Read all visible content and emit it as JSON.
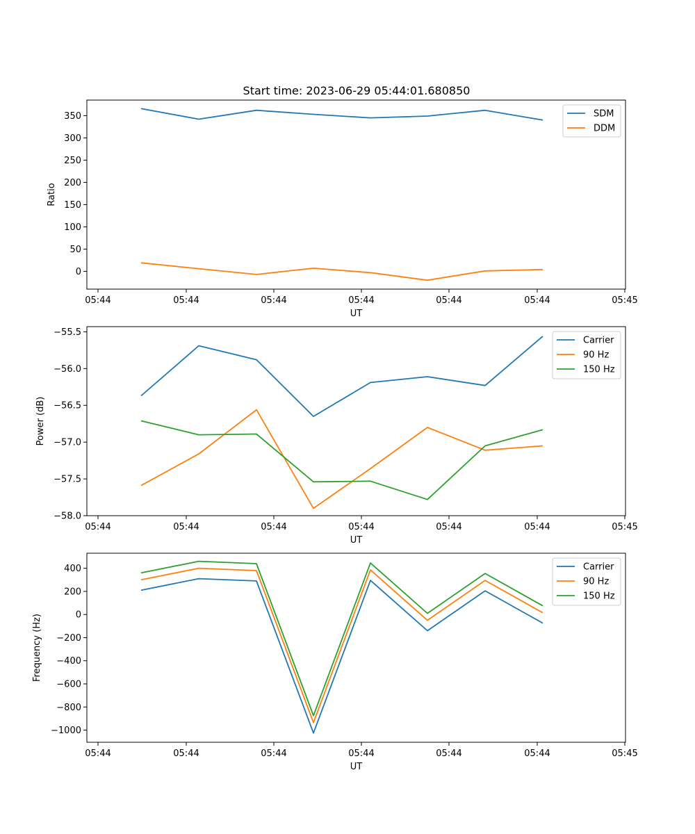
{
  "title": "Start time: 2023-06-29 05:44:01.680850",
  "colors": {
    "blue": "#1f77b4",
    "orange": "#ff7f0e",
    "green": "#2ca02c"
  },
  "chart_data": [
    {
      "type": "line",
      "xlabel": "UT",
      "ylabel": "Ratio",
      "x_tick_labels": [
        "05:44",
        "05:44",
        "05:44",
        "05:44",
        "05:44",
        "05:44",
        "05:45"
      ],
      "y_ticks": [
        0,
        50,
        100,
        150,
        200,
        250,
        300,
        350
      ],
      "ylim": [
        -40,
        385
      ],
      "grid": false,
      "legend": "upper right",
      "series": [
        {
          "name": "SDM",
          "color": "#1f77b4",
          "values": [
            366,
            342,
            362,
            353,
            345,
            349,
            362,
            340
          ]
        },
        {
          "name": "DDM",
          "color": "#ff7f0e",
          "values": [
            19,
            6,
            -7,
            7,
            -3,
            -20,
            1,
            4
          ]
        }
      ]
    },
    {
      "type": "line",
      "xlabel": "UT",
      "ylabel": "Power (dB)",
      "x_tick_labels": [
        "05:44",
        "05:44",
        "05:44",
        "05:44",
        "05:44",
        "05:44",
        "05:45"
      ],
      "y_ticks": [
        -58.0,
        -57.5,
        -57.0,
        -56.5,
        -56.0,
        -55.5
      ],
      "y_tick_labels": [
        "−58.0",
        "−57.5",
        "−57.0",
        "−56.5",
        "−56.0",
        "−55.5"
      ],
      "ylim": [
        -58.0,
        -55.43
      ],
      "grid": false,
      "legend": "upper right",
      "series": [
        {
          "name": "Carrier",
          "color": "#1f77b4",
          "values": [
            -56.37,
            -55.69,
            -55.88,
            -56.65,
            -56.19,
            -56.11,
            -56.23,
            -55.56
          ]
        },
        {
          "name": "90 Hz",
          "color": "#ff7f0e",
          "values": [
            -57.59,
            -57.16,
            -56.56,
            -57.9,
            -57.36,
            -56.8,
            -57.11,
            -57.05
          ]
        },
        {
          "name": "150 Hz",
          "color": "#2ca02c",
          "values": [
            -56.71,
            -56.9,
            -56.89,
            -57.54,
            -57.53,
            -57.78,
            -57.05,
            -56.83
          ]
        }
      ]
    },
    {
      "type": "line",
      "xlabel": "UT",
      "ylabel": "Frequency (Hz)",
      "x_tick_labels": [
        "05:44",
        "05:44",
        "05:44",
        "05:44",
        "05:44",
        "05:44",
        "05:45"
      ],
      "y_ticks": [
        -1000,
        -800,
        -600,
        -400,
        -200,
        0,
        200,
        400
      ],
      "y_tick_labels": [
        "−1000",
        "−800",
        "−600",
        "−400",
        "−200",
        "0",
        "200",
        "400"
      ],
      "ylim": [
        -1105,
        530
      ],
      "grid": false,
      "legend": "upper right",
      "series": [
        {
          "name": "Carrier",
          "color": "#1f77b4",
          "values": [
            210,
            310,
            290,
            -1025,
            295,
            -140,
            205,
            -75
          ]
        },
        {
          "name": "90 Hz",
          "color": "#ff7f0e",
          "values": [
            300,
            400,
            380,
            -935,
            385,
            -50,
            295,
            15
          ]
        },
        {
          "name": "150 Hz",
          "color": "#2ca02c",
          "values": [
            360,
            460,
            440,
            -875,
            445,
            10,
            355,
            75
          ]
        }
      ]
    }
  ]
}
